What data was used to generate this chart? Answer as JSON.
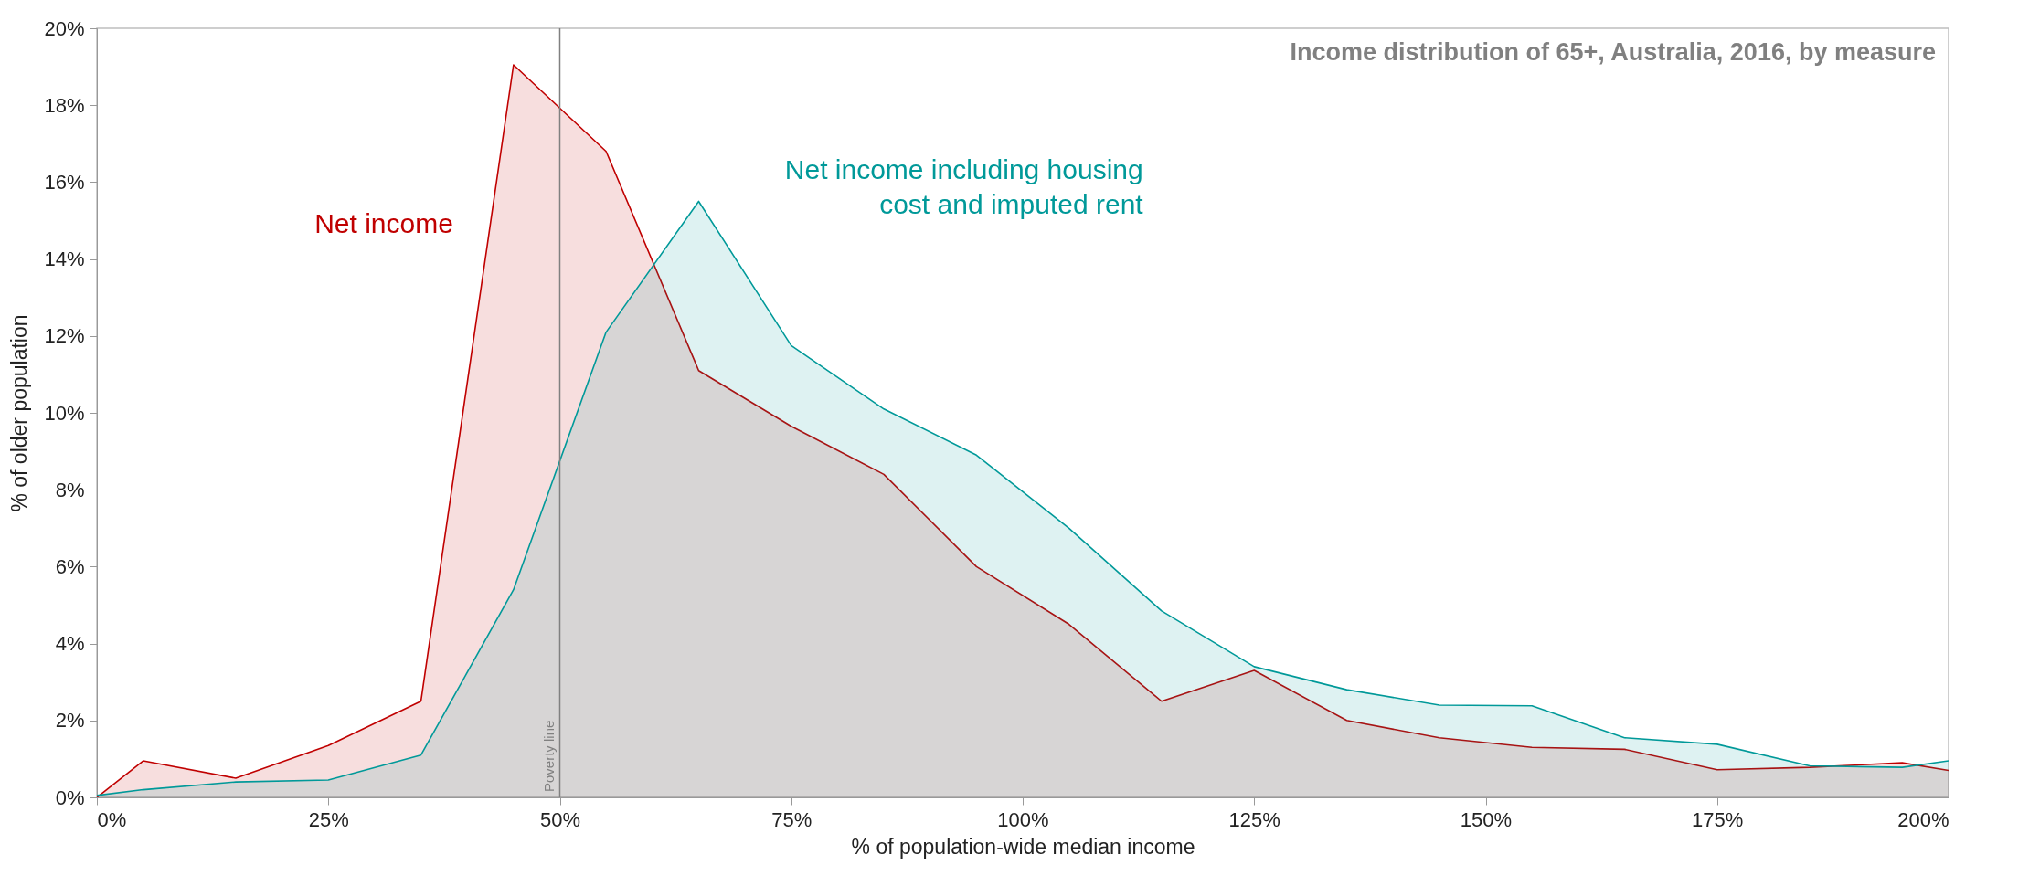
{
  "chart_data": {
    "type": "area",
    "title": "Income distribution of 65+, Australia, 2016, by measure",
    "xlabel": "% of population-wide median income",
    "ylabel": "% of older population",
    "x": [
      0,
      5,
      15,
      25,
      35,
      45,
      55,
      65,
      75,
      85,
      95,
      105,
      115,
      125,
      135,
      145,
      155,
      165,
      175,
      185,
      195,
      200
    ],
    "series": [
      {
        "name": "Net income",
        "color": "#c00000",
        "values": [
          0,
          0.95,
          0.5,
          1.35,
          2.5,
          19.05,
          16.8,
          11.1,
          9.65,
          8.4,
          6.0,
          4.5,
          2.5,
          3.3,
          2.0,
          1.55,
          1.3,
          1.25,
          0.72,
          0.78,
          0.9,
          0.7
        ]
      },
      {
        "name": "Net income including housing cost and imputed rent",
        "color": "#009999",
        "values": [
          0.05,
          0.2,
          0.4,
          0.45,
          1.1,
          5.4,
          12.1,
          15.5,
          11.75,
          10.1,
          8.9,
          7.0,
          4.85,
          3.4,
          2.8,
          2.4,
          2.38,
          1.55,
          1.38,
          0.82,
          0.78,
          0.95
        ]
      }
    ],
    "xlim": [
      0,
      200
    ],
    "xticks": [
      {
        "value": 0,
        "label": "0%"
      },
      {
        "value": 25,
        "label": "25%"
      },
      {
        "value": 50,
        "label": "50%"
      },
      {
        "value": 75,
        "label": "75%"
      },
      {
        "value": 100,
        "label": "100%"
      },
      {
        "value": 125,
        "label": "125%"
      },
      {
        "value": 150,
        "label": "150%"
      },
      {
        "value": 175,
        "label": "175%"
      },
      {
        "value": 200,
        "label": "200%"
      }
    ],
    "ylim": [
      0,
      20
    ],
    "yticks": [
      {
        "value": 0,
        "label": "0%"
      },
      {
        "value": 2,
        "label": "2%"
      },
      {
        "value": 4,
        "label": "4%"
      },
      {
        "value": 6,
        "label": "6%"
      },
      {
        "value": 8,
        "label": "8%"
      },
      {
        "value": 10,
        "label": "10%"
      },
      {
        "value": 12,
        "label": "12%"
      },
      {
        "value": 14,
        "label": "14%"
      },
      {
        "value": 16,
        "label": "16%"
      },
      {
        "value": 18,
        "label": "18%"
      },
      {
        "value": 20,
        "label": "20%"
      }
    ],
    "ref_lines": [
      {
        "axis": "x",
        "value": 50,
        "label": "Poverty line",
        "color": "#808080"
      }
    ],
    "grid": false,
    "legend": false
  }
}
